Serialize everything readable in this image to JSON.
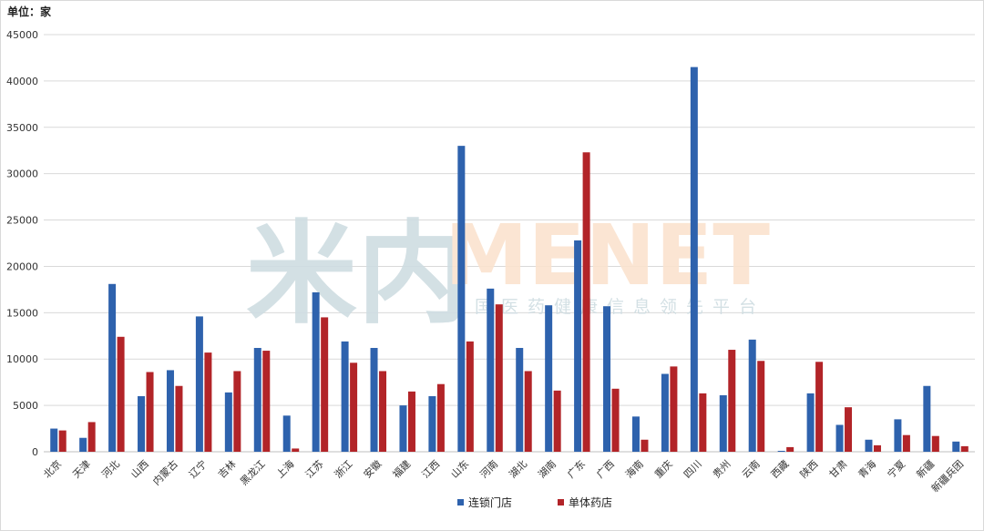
{
  "unit_label": "单位：家",
  "watermark": {
    "brand_cn": "米内",
    "brand_en": "MENET",
    "tagline": "中国医药健康信息领先平台"
  },
  "colors": {
    "series_chain": "#2e62ad",
    "series_single": "#b22428",
    "grid": "#d9d9d9",
    "axis": "#bfbfbf",
    "watermark_grey": "#cfdde2",
    "watermark_orange": "#fbe3cf"
  },
  "chart_data": {
    "type": "bar",
    "title": "",
    "xlabel": "",
    "ylabel": "单位：家",
    "ylim": [
      0,
      45000
    ],
    "yticks": [
      0,
      5000,
      10000,
      15000,
      20000,
      25000,
      30000,
      35000,
      40000,
      45000
    ],
    "grid": true,
    "legend_position": "bottom",
    "categories": [
      "北京",
      "天津",
      "河北",
      "山西",
      "内蒙古",
      "辽宁",
      "吉林",
      "黑龙江",
      "上海",
      "江苏",
      "浙江",
      "安徽",
      "福建",
      "江西",
      "山东",
      "河南",
      "湖北",
      "湖南",
      "广东",
      "广西",
      "海南",
      "重庆",
      "四川",
      "贵州",
      "云南",
      "西藏",
      "陕西",
      "甘肃",
      "青海",
      "宁夏",
      "新疆",
      "新疆兵团"
    ],
    "series": [
      {
        "name": "连锁门店",
        "values": [
          2500,
          1500,
          18100,
          6000,
          8800,
          14600,
          6400,
          11200,
          3900,
          17200,
          11900,
          11200,
          5000,
          6000,
          33000,
          17600,
          11200,
          15800,
          22800,
          15700,
          3800,
          8400,
          41500,
          6100,
          12100,
          100,
          6300,
          2900,
          1300,
          3500,
          7100,
          1100
        ]
      },
      {
        "name": "单体药店",
        "values": [
          2300,
          3200,
          12400,
          8600,
          7100,
          10700,
          8700,
          10900,
          350,
          14500,
          9600,
          8700,
          6500,
          7300,
          11900,
          15900,
          8700,
          6600,
          32300,
          6800,
          1300,
          9200,
          6300,
          11000,
          9800,
          500,
          9700,
          4800,
          700,
          1800,
          1700,
          600
        ]
      }
    ]
  }
}
